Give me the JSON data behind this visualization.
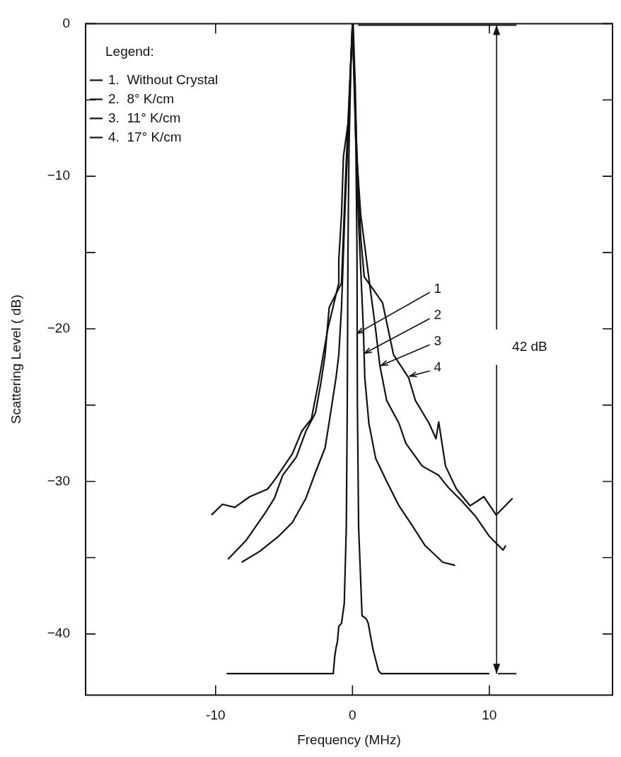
{
  "chart_data": {
    "type": "line",
    "xlabel": "Frequency (MHz)",
    "ylabel": "Scattering Level ( dB)",
    "legend_title": "Legend:",
    "legend": "top left",
    "marker": "none",
    "line_style": "solid",
    "xlim": [
      -19.5,
      19
    ],
    "xticks": [
      -10,
      0,
      10
    ],
    "ylim": [
      -44,
      0
    ],
    "yticks": [
      {
        "value": -40,
        "label": "−40"
      },
      {
        "value": -35,
        "label": null
      },
      {
        "value": -30,
        "label": "−30"
      },
      {
        "value": -25,
        "label": null
      },
      {
        "value": -20,
        "label": "−20"
      },
      {
        "value": -15,
        "label": null
      },
      {
        "value": -10,
        "label": "−10"
      },
      {
        "value": -5,
        "label": null
      },
      0
    ],
    "series": [
      {
        "name": "1.  Without Crystal",
        "color": "#111111",
        "x": [
          -9.2,
          -1.4,
          -1.3,
          -1.2,
          -1.1,
          -1.0,
          -0.8,
          -0.6,
          -0.45,
          -0.38,
          -0.33,
          -0.25,
          -0.12,
          0,
          0.12,
          0.25,
          0.33,
          0.36,
          0.45,
          0.7,
          1.0,
          1.15,
          1.5,
          1.9,
          2.1,
          10
        ],
        "values": [
          -42.6,
          -42.6,
          -41.5,
          -40.9,
          -40.5,
          -39.5,
          -39.3,
          -38,
          -33,
          -25,
          -15,
          -8,
          -3,
          0,
          -3,
          -8,
          -15,
          -25,
          -33,
          -38.8,
          -39.0,
          -39.3,
          -41,
          -42.4,
          -42.6,
          -42.6
        ]
      },
      {
        "name": "2.  8° K/cm",
        "color": "#111111",
        "x": [
          -8.1,
          -6.8,
          -5.4,
          -4.4,
          -3.4,
          -2.7,
          -2.0,
          -1.7,
          -1.2,
          -1.0,
          -0.8,
          -0.56,
          -0.3,
          -0.1,
          0.05,
          0.2,
          0.4,
          0.8,
          0.9,
          1.2,
          1.7,
          2.5,
          3.4,
          4.3,
          5.3,
          6.6,
          7.5
        ],
        "values": [
          -35.3,
          -34.6,
          -33.6,
          -32.7,
          -31.1,
          -29.4,
          -27.8,
          -26.1,
          -23.2,
          -21.7,
          -18.6,
          -12.5,
          -7,
          -2,
          0,
          -4,
          -12,
          -20.1,
          -23.2,
          -26.2,
          -28.5,
          -30.0,
          -31.6,
          -32.8,
          -34.2,
          -35.3,
          -35.5
        ]
      },
      {
        "name": "3.  11° K/cm",
        "color": "#111111",
        "x": [
          -9.1,
          -7.8,
          -6.4,
          -5.7,
          -5.1,
          -4.1,
          -3.4,
          -2.7,
          -2.3,
          -2.0,
          -1.7,
          -0.8,
          -0.5,
          -0.2,
          0,
          0.25,
          0.6,
          1.2,
          1.7,
          2.0,
          2.5,
          3.4,
          3.9,
          5.1,
          6.3,
          7.0,
          8.0,
          9.0,
          10.0,
          11.0,
          11.2
        ],
        "values": [
          -35.1,
          -33.9,
          -32.1,
          -31.1,
          -29.6,
          -28.4,
          -26.7,
          -25.5,
          -23.5,
          -21.7,
          -18.6,
          -17,
          -10,
          -4,
          0,
          -7.9,
          -12.5,
          -16.7,
          -20.1,
          -22.4,
          -24.7,
          -26.2,
          -27.5,
          -29.0,
          -29.6,
          -30.4,
          -31.3,
          -32.3,
          -33.6,
          -34.5,
          -34.2
        ]
      },
      {
        "name": "4.  17° K/cm",
        "color": "#111111",
        "x": [
          -10.3,
          -9.5,
          -8.6,
          -7.5,
          -6.2,
          -5.6,
          -4.4,
          -3.7,
          -3.0,
          -2.5,
          -1.8,
          -1.0,
          -1.0,
          -0.8,
          -0.66,
          -0.3,
          0,
          0.3,
          0.6,
          0.86,
          1.5,
          2.2,
          3.0,
          4.1,
          4.6,
          5.6,
          6.1,
          6.3,
          6.8,
          7.6,
          8.6,
          9.6,
          10.5,
          11.7
        ],
        "values": [
          -32.2,
          -31.5,
          -31.7,
          -31.0,
          -30.5,
          -29.8,
          -28.2,
          -26.7,
          -25.9,
          -23.6,
          -20,
          -17,
          -15.5,
          -12.5,
          -8.7,
          -6.4,
          0,
          -8,
          -14,
          -16.6,
          -17.4,
          -18.3,
          -21.7,
          -23.2,
          -24.7,
          -26.2,
          -27.2,
          -26.1,
          -29.0,
          -30.5,
          -31.6,
          -31.0,
          -32.2,
          -31.1
        ]
      }
    ],
    "annotations": [
      "42 dB",
      {
        "text": "1",
        "x": 0.35,
        "y": -20.3
      },
      {
        "text": "2",
        "x": 0.9,
        "y": -21.6
      },
      {
        "text": "3",
        "x": 2.1,
        "y": -22.4
      },
      {
        "text": "4",
        "x": 4.2,
        "y": -23.1
      }
    ]
  }
}
